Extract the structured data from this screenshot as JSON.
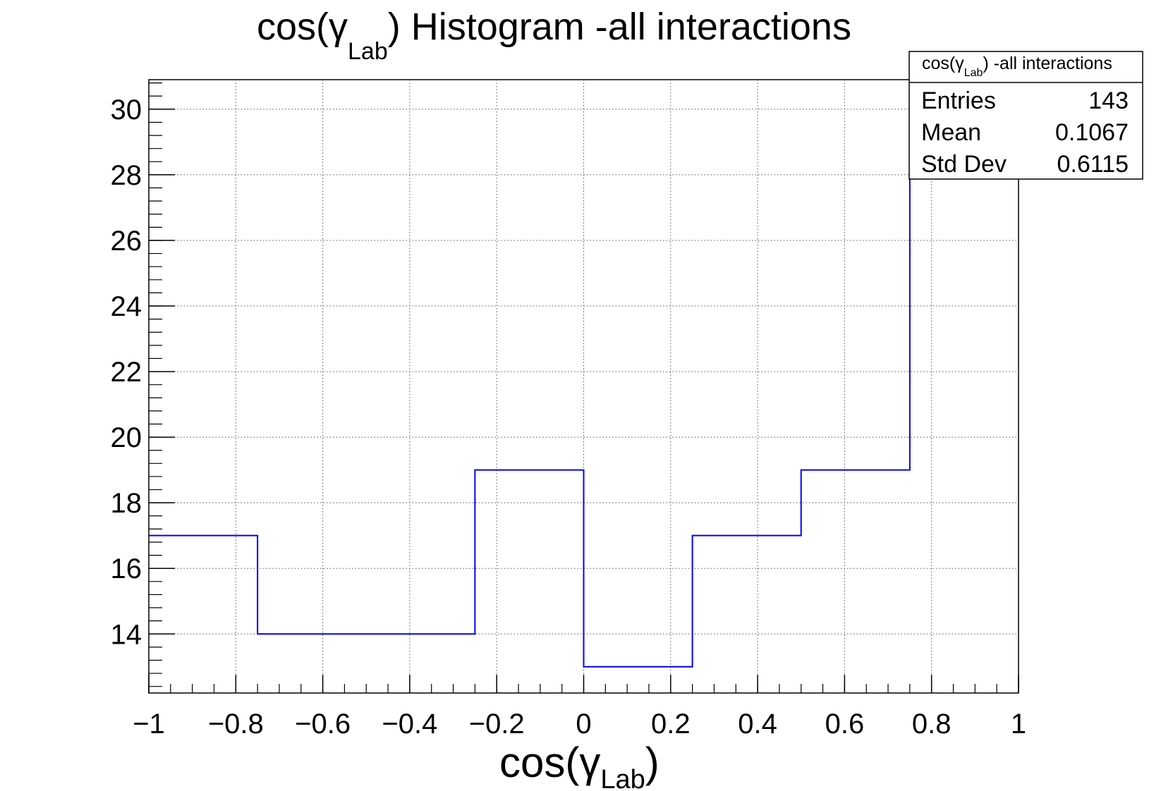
{
  "chart_data": {
    "type": "bar",
    "histogram_style": "step",
    "title": {
      "main": "cos(γ",
      "sub": "Lab",
      "tail": ") Histogram -all interactions"
    },
    "xlabel": {
      "main": "cos(γ",
      "sub": "Lab",
      "tail": ")"
    },
    "ylabel": "",
    "xlim": [
      -1,
      1
    ],
    "ylim": [
      12.2,
      30.9
    ],
    "bin_edges": [
      -1,
      -0.75,
      -0.5,
      -0.25,
      0,
      0.25,
      0.5,
      0.75,
      1
    ],
    "values": [
      17,
      14,
      14,
      19,
      13,
      17,
      19,
      30
    ],
    "x_ticks": [
      -1,
      -0.8,
      -0.6,
      -0.4,
      -0.2,
      0,
      0.2,
      0.4,
      0.6,
      0.8,
      1
    ],
    "x_tick_labels": [
      "−1",
      "−0.8",
      "−0.6",
      "−0.4",
      "−0.2",
      "0",
      "0.2",
      "0.4",
      "0.6",
      "0.8",
      "1"
    ],
    "y_ticks": [
      14,
      16,
      18,
      20,
      22,
      24,
      26,
      28,
      30
    ],
    "y_tick_labels": [
      "14",
      "16",
      "18",
      "20",
      "22",
      "24",
      "26",
      "28",
      "30"
    ],
    "grid": true,
    "line_color": "#0000ff",
    "legend_placement": "top-right",
    "stats_box": {
      "title": {
        "main": "cos(γ",
        "sub": "Lab",
        "tail": ") -all interactions"
      },
      "rows": [
        {
          "label": "Entries",
          "value": "143"
        },
        {
          "label": "Mean",
          "value": "0.1067"
        },
        {
          "label": "Std Dev",
          "value": "0.6115"
        }
      ]
    }
  }
}
